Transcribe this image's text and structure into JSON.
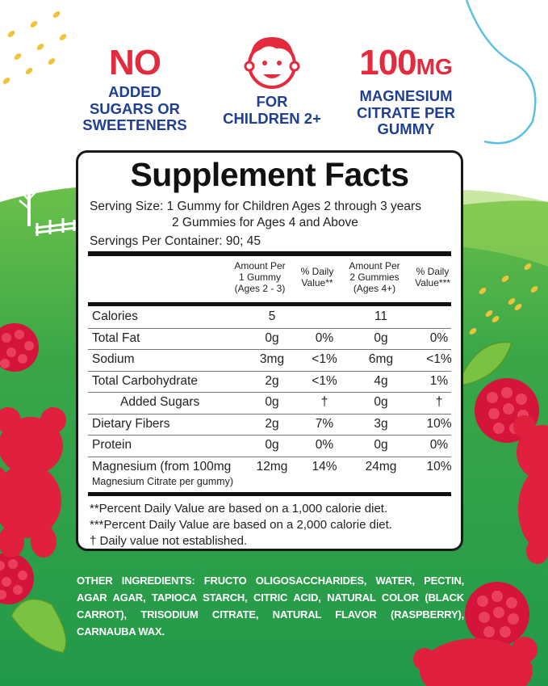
{
  "badges": [
    {
      "headline": "NO",
      "text1": "ADDED",
      "text2": "SUGARS OR",
      "text3": "SWEETENERS"
    },
    {
      "icon": "child-face-icon",
      "text1": "FOR",
      "text2": "CHILDREN 2+"
    },
    {
      "headline_num": "100",
      "headline_unit": "MG",
      "text1": "MAGNESIUM",
      "text2": "CITRATE PER",
      "text3": "GUMMY"
    }
  ],
  "facts": {
    "title": "Supplement Facts",
    "serving_line1": "Serving Size: 1 Gummy for Children Ages 2 through 3 years",
    "serving_line2": "2 Gummies for Ages 4 and Above",
    "servings_per_container": "Servings Per Container: 90; 45",
    "col_headers": {
      "amount1_l1": "Amount Per",
      "amount1_l2": "1 Gummy",
      "amount1_l3": "(Ages 2 - 3)",
      "dv1_l1": "% Daily",
      "dv1_l2": "Value**",
      "amount2_l1": "Amount Per",
      "amount2_l2": "2 Gummies",
      "amount2_l3": "(Ages 4+)",
      "dv2_l1": "% Daily",
      "dv2_l2": "Value***"
    },
    "rows": [
      {
        "name": "Calories",
        "a1": "5",
        "d1": "",
        "a2": "11",
        "d2": ""
      },
      {
        "name": "Total Fat",
        "a1": "0g",
        "d1": "0%",
        "a2": "0g",
        "d2": "0%"
      },
      {
        "name": "Sodium",
        "a1": "3mg",
        "d1": "<1%",
        "a2": "6mg",
        "d2": "<1%"
      },
      {
        "name": "Total Carbohydrate",
        "a1": "2g",
        "d1": "<1%",
        "a2": "4g",
        "d2": "1%"
      },
      {
        "name": "Added Sugars",
        "a1": "0g",
        "d1": "†",
        "a2": "0g",
        "d2": "†"
      },
      {
        "name": "Dietary Fibers",
        "a1": "2g",
        "d1": "7%",
        "a2": "3g",
        "d2": "10%"
      },
      {
        "name": "Protein",
        "a1": "0g",
        "d1": "0%",
        "a2": "0g",
        "d2": "0%"
      },
      {
        "name": "Magnesium (from 100mg",
        "sub": "Magnesium Citrate per gummy)",
        "a1": "12mg",
        "d1": "14%",
        "a2": "24mg",
        "d2": "10%"
      }
    ],
    "footnotes": [
      "**Percent Daily Value are based on a 1,000 calorie diet.",
      "***Percent Daily Value  are based on a 2,000 calorie diet.",
      "† Daily value not established."
    ]
  },
  "other_ingredients": {
    "label": "OTHER INGREDIENTS:",
    "text": "FRUCTO OLIGOSACCHARIDES, WATER, PECTIN, AGAR AGAR, TAPIOCA STARCH, CITRIC ACID, NATURAL COLOR (BLACK CARROT), TRISODIUM CITRATE, NATURAL FLAVOR (RASPBERRY), CARNAUBA WAX."
  },
  "colors": {
    "accent_red": "#e42b3d",
    "navy": "#1f3f93",
    "green": "#3aa648"
  }
}
